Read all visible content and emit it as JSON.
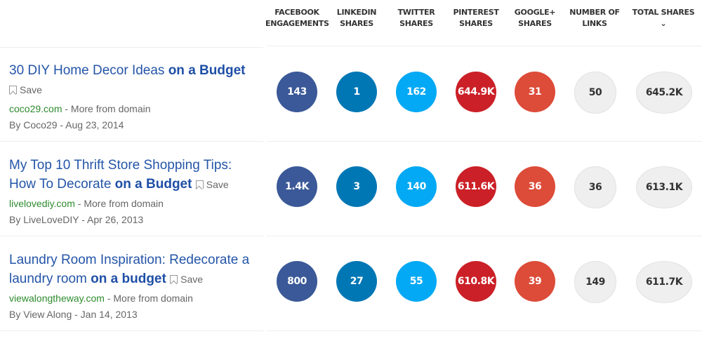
{
  "columns": [
    "FACEBOOK ENGAGEMENTS",
    "LINKEDIN SHARES",
    "TWITTER SHARES",
    "PINTEREST SHARES",
    "GOOGLE+ SHARES",
    "NUMBER OF LINKS",
    "TOTAL SHARES"
  ],
  "columns_lines": [
    [
      "FACEBOOK",
      "ENGAGEMENTS"
    ],
    [
      "LINKEDIN",
      "SHARES"
    ],
    [
      "TWITTER",
      "SHARES"
    ],
    [
      "PINTEREST",
      "SHARES"
    ],
    [
      "GOOGLE+",
      "SHARES"
    ],
    [
      "NUMBER OF",
      "LINKS"
    ],
    [
      "TOTAL SHARES ⌄",
      ""
    ]
  ],
  "sort_icon": "chevron-down-icon",
  "colors": {
    "facebook": "#3b5998",
    "linkedin": "#0077b5",
    "twitter": "#03a9f4",
    "pinterest": "#cb2027",
    "google": "#dd4b39",
    "grey": "#efefef"
  },
  "save_label": "Save",
  "more_label": "- More from domain",
  "rows": [
    {
      "title_plain": "30 DIY Home Decor Ideas ",
      "title_bold": "on a Budget",
      "domain": "coco29.com",
      "byline": "By Coco29 - Aug 23, 2014",
      "facebook": "143",
      "linkedin": "1",
      "twitter": "162",
      "pinterest": "644.9K",
      "google": "31",
      "links": "50",
      "total": "645.2K"
    },
    {
      "title_plain": "My Top 10 Thrift Store Shopping Tips: How To Decorate ",
      "title_bold": "on a Budget",
      "domain": "livelovediy.com",
      "byline": "By LiveLoveDIY - Apr 26, 2013",
      "facebook": "1.4K",
      "linkedin": "3",
      "twitter": "140",
      "pinterest": "611.6K",
      "google": "36",
      "links": "36",
      "total": "613.1K"
    },
    {
      "title_plain": "Laundry Room Inspiration: Redecorate a laundry room ",
      "title_bold": "on a budget",
      "domain": "viewalongtheway.com",
      "byline": "By View Along - Jan 14, 2013",
      "facebook": "800",
      "linkedin": "27",
      "twitter": "55",
      "pinterest": "610.8K",
      "google": "39",
      "links": "149",
      "total": "611.7K"
    }
  ]
}
